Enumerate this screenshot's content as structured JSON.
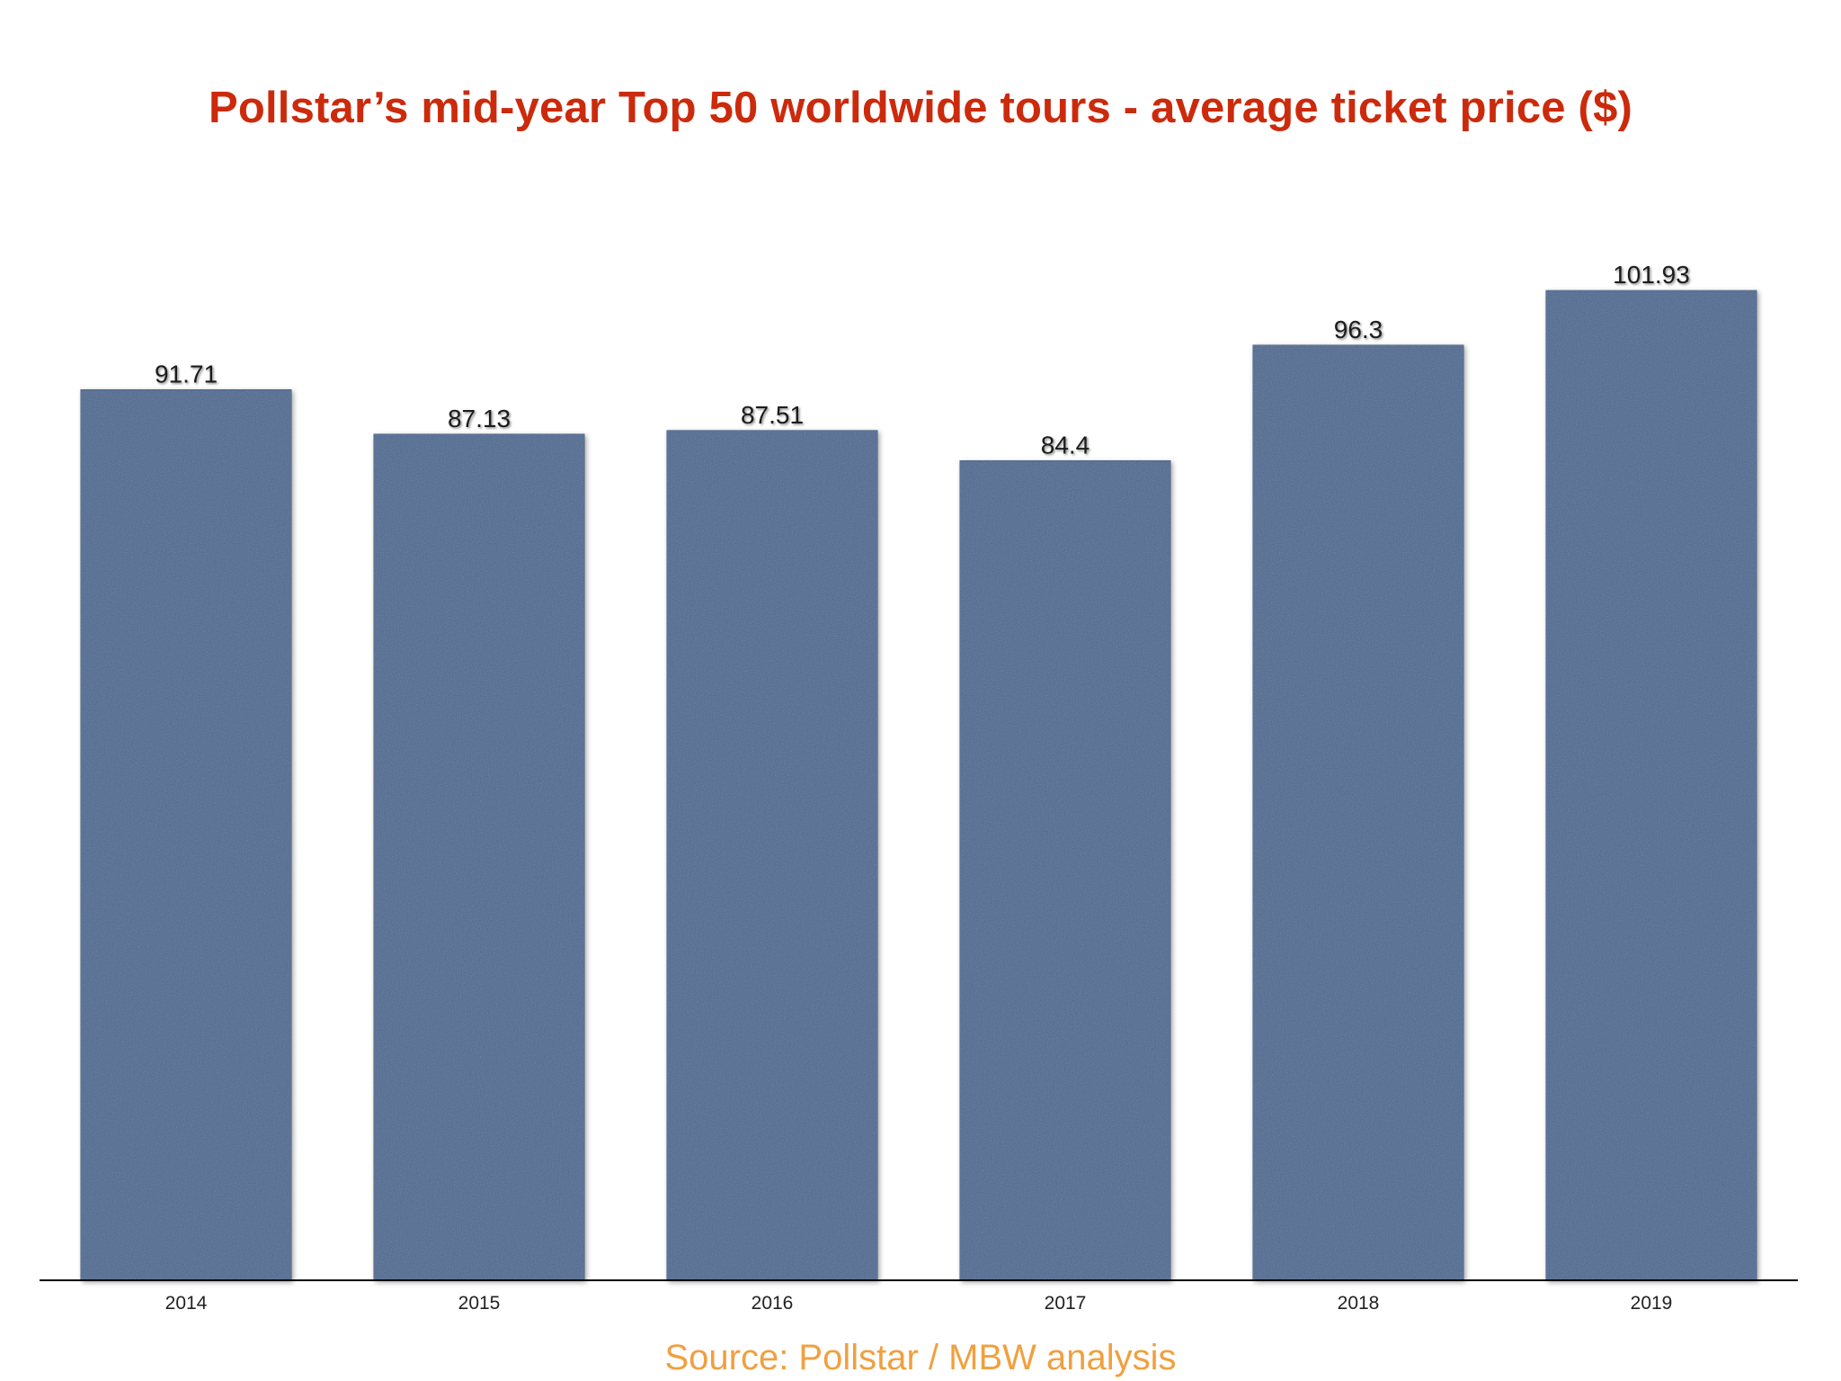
{
  "title": "Pollstar’s mid-year Top 50 worldwide tours - average ticket price ($)",
  "source": "Source: Pollstar / MBW analysis",
  "colors": {
    "title": "#cc2a0c",
    "source": "#f0a040",
    "bar": "#4d6a93",
    "bar_edge": "#3f5a80",
    "axis": "#000000"
  },
  "chart_data": {
    "type": "bar",
    "title": "Pollstar’s mid-year Top 50 worldwide tours - average ticket price ($)",
    "xlabel": "",
    "ylabel": "",
    "categories": [
      "2014",
      "2015",
      "2016",
      "2017",
      "2018",
      "2019"
    ],
    "values": [
      91.71,
      87.13,
      87.51,
      84.4,
      96.3,
      101.93
    ],
    "value_labels": [
      "91.71",
      "87.13",
      "87.51",
      "84.4",
      "96.3",
      "101.93"
    ],
    "ylim": [
      0,
      110
    ],
    "grid": false,
    "legend": "none",
    "y_axis_visible": false
  }
}
